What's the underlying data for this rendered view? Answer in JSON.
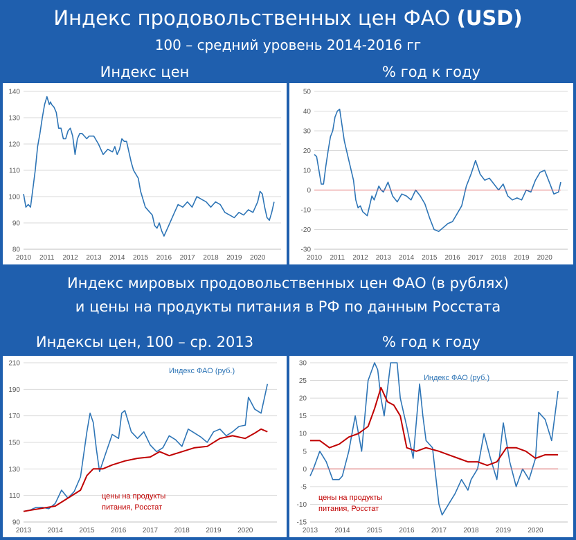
{
  "header": {
    "title": "Индекс продовольственных цен ФАО",
    "title_bold": "(USD)",
    "subtitle": "100 – средний уровень 2014-2016 гг"
  },
  "section2": {
    "line1": "Индекс мировых продовольственных цен ФАО (в рублях)",
    "line2": "и цены на продукты питания в РФ по данным Росстата"
  },
  "panel_titles": {
    "p1": "Индекс цен",
    "p2": "% год к году",
    "p3": "Индексы цен, 100 – ср. 2013",
    "p4": "% год к году"
  },
  "colors": {
    "blue": "#2e75b6",
    "red": "#c00000",
    "zero": "#e06666",
    "band": "#1f5fae",
    "grid": "#d9d9d9"
  },
  "chart_data": [
    {
      "type": "line",
      "title": "Индекс цен",
      "x_ticks": [
        "2010",
        "2011",
        "2012",
        "2013",
        "2014",
        "2015",
        "2016",
        "2017",
        "2018",
        "2019",
        "2020"
      ],
      "ylim": [
        80,
        140
      ],
      "y_ticks": [
        80,
        90,
        100,
        110,
        120,
        130,
        140
      ],
      "grid": true,
      "series": [
        {
          "color": "#2e75b6",
          "x": [
            2010.0,
            2010.1,
            2010.2,
            2010.3,
            2010.4,
            2010.5,
            2010.6,
            2010.7,
            2010.8,
            2010.9,
            2011.0,
            2011.1,
            2011.15,
            2011.2,
            2011.3,
            2011.4,
            2011.5,
            2011.6,
            2011.7,
            2011.8,
            2011.9,
            2012.0,
            2012.1,
            2012.2,
            2012.3,
            2012.4,
            2012.5,
            2012.6,
            2012.7,
            2012.8,
            2012.9,
            2013.0,
            2013.2,
            2013.4,
            2013.6,
            2013.8,
            2013.9,
            2014.0,
            2014.1,
            2014.2,
            2014.3,
            2014.4,
            2014.5,
            2014.6,
            2014.7,
            2014.9,
            2015.0,
            2015.2,
            2015.4,
            2015.5,
            2015.6,
            2015.7,
            2015.8,
            2015.9,
            2016.0,
            2016.2,
            2016.4,
            2016.6,
            2016.8,
            2017.0,
            2017.2,
            2017.4,
            2017.6,
            2017.8,
            2018.0,
            2018.2,
            2018.4,
            2018.6,
            2018.8,
            2019.0,
            2019.2,
            2019.4,
            2019.6,
            2019.8,
            2020.0,
            2020.1,
            2020.2,
            2020.3,
            2020.4,
            2020.5,
            2020.6,
            2020.7
          ],
          "y": [
            101,
            96,
            97,
            96,
            103,
            110,
            119,
            124,
            130,
            135,
            138,
            135,
            136,
            135,
            134,
            132,
            126,
            126,
            122,
            122,
            125,
            126,
            123,
            116,
            122,
            124,
            124,
            123,
            122,
            123,
            123,
            123,
            120,
            116,
            118,
            117,
            119,
            116,
            118,
            122,
            121,
            121,
            117,
            113,
            110,
            107,
            102,
            96,
            94,
            93,
            89,
            88,
            90,
            87,
            85,
            89,
            93,
            97,
            96,
            98,
            96,
            100,
            99,
            98,
            96,
            98,
            97,
            94,
            93,
            92,
            94,
            93,
            95,
            94,
            98,
            102,
            101,
            96,
            92,
            91,
            94,
            98
          ]
        }
      ]
    },
    {
      "type": "line",
      "title": "% год к году",
      "x_ticks": [
        "2010",
        "2011",
        "2012",
        "2013",
        "2014",
        "2015",
        "2016",
        "2017",
        "2018",
        "2019",
        "2020"
      ],
      "ylim": [
        -30,
        50
      ],
      "y_ticks": [
        -30,
        -20,
        -10,
        0,
        10,
        20,
        30,
        40,
        50
      ],
      "grid": true,
      "series": [
        {
          "color": "#2e75b6",
          "x": [
            2010.0,
            2010.1,
            2010.2,
            2010.3,
            2010.4,
            2010.5,
            2010.6,
            2010.7,
            2010.8,
            2010.9,
            2011.0,
            2011.1,
            2011.3,
            2011.5,
            2011.7,
            2011.8,
            2011.9,
            2012.0,
            2012.1,
            2012.3,
            2012.5,
            2012.6,
            2012.8,
            2012.9,
            2013.0,
            2013.2,
            2013.4,
            2013.6,
            2013.8,
            2014.0,
            2014.2,
            2014.4,
            2014.6,
            2014.8,
            2015.0,
            2015.2,
            2015.4,
            2015.6,
            2015.8,
            2016.0,
            2016.2,
            2016.4,
            2016.6,
            2016.8,
            2017.0,
            2017.2,
            2017.4,
            2017.6,
            2017.8,
            2018.0,
            2018.2,
            2018.4,
            2018.6,
            2018.8,
            2019.0,
            2019.2,
            2019.4,
            2019.6,
            2019.8,
            2020.0,
            2020.2,
            2020.4,
            2020.6,
            2020.7
          ],
          "y": [
            18,
            17,
            10,
            3,
            3,
            12,
            20,
            27,
            30,
            37,
            40,
            41,
            25,
            15,
            5,
            -5,
            -9,
            -8,
            -11,
            -13,
            -3,
            -5,
            2,
            0,
            -1,
            4,
            -3,
            -6,
            -2,
            -3,
            -5,
            0,
            -3,
            -7,
            -14,
            -20,
            -21,
            -19,
            -17,
            -16,
            -12,
            -8,
            2,
            8,
            15,
            8,
            5,
            6,
            3,
            0,
            3,
            -3,
            -5,
            -4,
            -5,
            0,
            -1,
            5,
            9,
            10,
            4,
            -2,
            -1,
            4
          ]
        },
        {
          "color": "#e06666",
          "x": [
            2010.0,
            2020.7
          ],
          "y": [
            0,
            0
          ]
        }
      ]
    },
    {
      "type": "line",
      "title": "Индексы цен, 100 – ср. 2013",
      "x_ticks": [
        "2013",
        "2014",
        "2015",
        "2016",
        "2017",
        "2018",
        "2019",
        "2020"
      ],
      "ylim": [
        90,
        210
      ],
      "y_ticks": [
        90,
        110,
        130,
        150,
        170,
        190,
        210
      ],
      "grid": true,
      "series": [
        {
          "name": "Индекс ФАО (руб.)",
          "color": "#2e75b6",
          "x": [
            2013.0,
            2013.2,
            2013.4,
            2013.6,
            2013.8,
            2014.0,
            2014.2,
            2014.4,
            2014.6,
            2014.8,
            2015.0,
            2015.1,
            2015.2,
            2015.3,
            2015.4,
            2015.6,
            2015.8,
            2016.0,
            2016.1,
            2016.2,
            2016.4,
            2016.6,
            2016.8,
            2017.0,
            2017.2,
            2017.4,
            2017.6,
            2017.8,
            2018.0,
            2018.2,
            2018.4,
            2018.6,
            2018.8,
            2019.0,
            2019.2,
            2019.4,
            2019.6,
            2019.8,
            2020.0,
            2020.1,
            2020.3,
            2020.5,
            2020.7
          ],
          "y": [
            98,
            99,
            101,
            101,
            100,
            104,
            114,
            108,
            113,
            124,
            158,
            172,
            165,
            145,
            128,
            142,
            156,
            153,
            172,
            174,
            158,
            153,
            158,
            148,
            143,
            146,
            155,
            152,
            147,
            160,
            157,
            154,
            150,
            158,
            160,
            155,
            158,
            162,
            163,
            184,
            175,
            172,
            194
          ]
        },
        {
          "name": "цены на продукты питания, Росстат",
          "color": "#c00000",
          "x": [
            2013.0,
            2013.5,
            2014.0,
            2014.4,
            2014.8,
            2015.0,
            2015.2,
            2015.5,
            2015.8,
            2016.2,
            2016.6,
            2017.0,
            2017.3,
            2017.6,
            2018.0,
            2018.4,
            2018.8,
            2019.2,
            2019.6,
            2020.0,
            2020.3,
            2020.5,
            2020.7
          ],
          "y": [
            98,
            100,
            102,
            108,
            114,
            125,
            130,
            130,
            133,
            136,
            138,
            139,
            143,
            140,
            143,
            146,
            147,
            153,
            155,
            153,
            157,
            160,
            158
          ]
        }
      ]
    },
    {
      "type": "line",
      "title": "% год к году",
      "x_ticks": [
        "2013",
        "2014",
        "2015",
        "2016",
        "2017",
        "2018",
        "2019",
        "2020"
      ],
      "ylim": [
        -15,
        30
      ],
      "y_ticks": [
        -15,
        -10,
        -5,
        0,
        5,
        10,
        15,
        20,
        25,
        30
      ],
      "grid": true,
      "series": [
        {
          "name": "Индекс ФАО (руб.)",
          "color": "#2e75b6",
          "x": [
            2013.0,
            2013.1,
            2013.3,
            2013.5,
            2013.7,
            2013.9,
            2014.0,
            2014.2,
            2014.4,
            2014.5,
            2014.6,
            2014.8,
            2015.0,
            2015.1,
            2015.2,
            2015.3,
            2015.5,
            2015.7,
            2015.8,
            2016.0,
            2016.2,
            2016.4,
            2016.5,
            2016.6,
            2016.8,
            2017.0,
            2017.1,
            2017.3,
            2017.5,
            2017.7,
            2017.9,
            2018.0,
            2018.2,
            2018.4,
            2018.6,
            2018.8,
            2019.0,
            2019.2,
            2019.4,
            2019.6,
            2019.8,
            2020.0,
            2020.1,
            2020.3,
            2020.5,
            2020.7
          ],
          "y": [
            -2,
            0,
            5,
            2,
            -3,
            -3,
            -2,
            5,
            15,
            10,
            5,
            25,
            40,
            28,
            20,
            15,
            35,
            33,
            20,
            12,
            3,
            24,
            15,
            8,
            6,
            -10,
            -13,
            -10,
            -7,
            -3,
            -6,
            -3,
            0,
            10,
            3,
            -3,
            13,
            2,
            -5,
            0,
            -3,
            3,
            16,
            14,
            8,
            22
          ]
        },
        {
          "name": "цены на продукты питания, Росстат",
          "color": "#c00000",
          "x": [
            2013.0,
            2013.3,
            2013.6,
            2013.9,
            2014.2,
            2014.5,
            2014.8,
            2015.0,
            2015.2,
            2015.4,
            2015.6,
            2015.8,
            2016.0,
            2016.3,
            2016.6,
            2017.0,
            2017.3,
            2017.6,
            2017.9,
            2018.2,
            2018.5,
            2018.8,
            2019.1,
            2019.4,
            2019.7,
            2020.0,
            2020.3,
            2020.6,
            2020.7
          ],
          "y": [
            8,
            8,
            6,
            7,
            9,
            10,
            12,
            17,
            23,
            19,
            18,
            15,
            6,
            5,
            6,
            5,
            4,
            3,
            2,
            2,
            1,
            2,
            6,
            6,
            5,
            3,
            4,
            4,
            4
          ]
        },
        {
          "color": "#e06666",
          "x": [
            2013.0,
            2020.7
          ],
          "y": [
            0,
            0
          ]
        }
      ]
    }
  ]
}
